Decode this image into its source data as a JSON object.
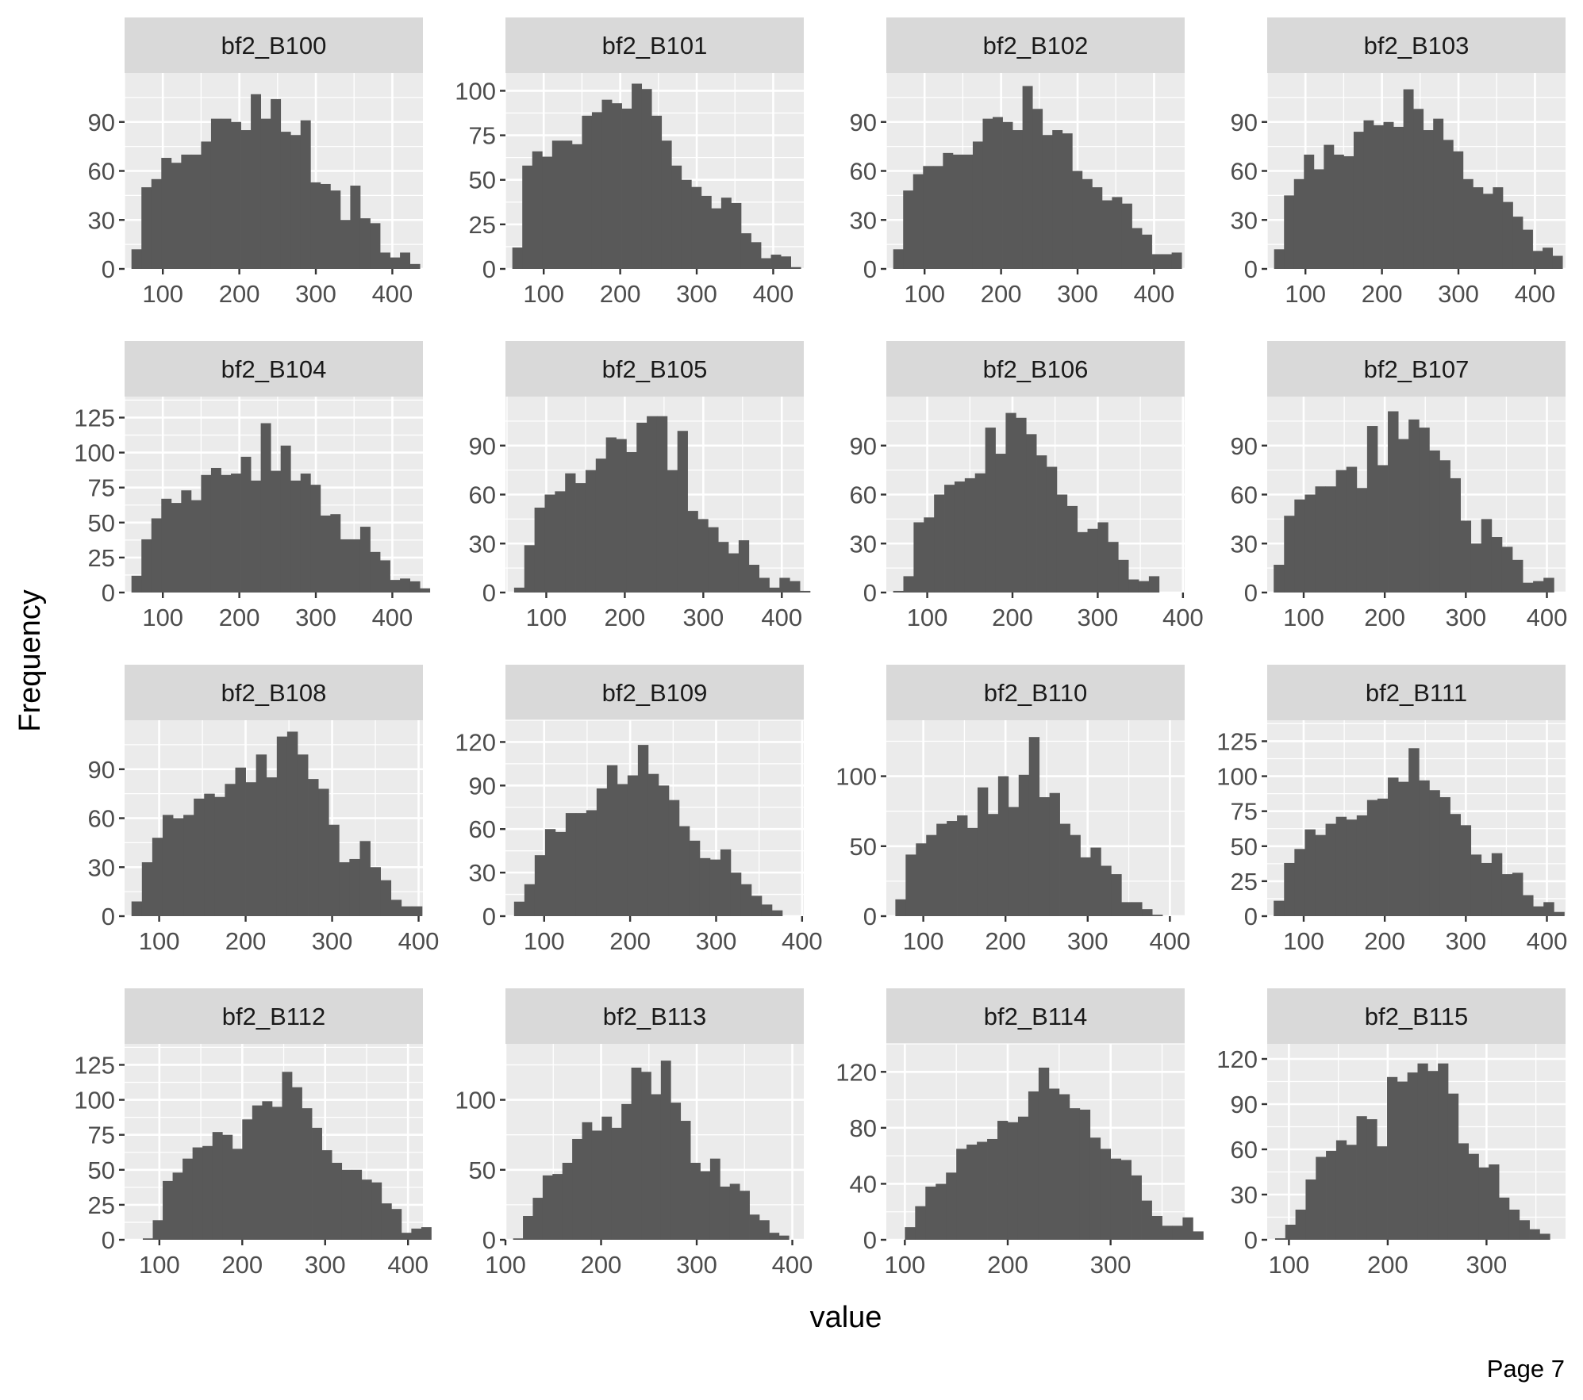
{
  "page_label": "Page 7",
  "xlabel": "value",
  "ylabel": "Frequency",
  "colors": {
    "bar": "#595959",
    "panel": "#ebebeb",
    "strip": "#d9d9d9",
    "grid": "#ffffff",
    "tick": "#333333",
    "tick_text": "#4d4d4d"
  },
  "chart_data": [
    {
      "type": "bar",
      "title": "bf2_B100",
      "xlim": [
        50,
        440
      ],
      "ylim": [
        0,
        120
      ],
      "xticks": [
        100,
        200,
        300,
        400
      ],
      "yticks": [
        0,
        30,
        60,
        90
      ],
      "bin_start": 59,
      "bin_width": 13,
      "values": [
        12,
        50,
        55,
        68,
        65,
        70,
        70,
        78,
        92,
        92,
        90,
        85,
        107,
        92,
        104,
        84,
        82,
        91,
        53,
        52,
        48,
        30,
        51,
        31,
        28,
        10,
        7,
        10,
        3
      ]
    },
    {
      "type": "bar",
      "title": "bf2_B101",
      "xlim": [
        50,
        440
      ],
      "ylim": [
        0,
        110
      ],
      "xticks": [
        100,
        200,
        300,
        400
      ],
      "yticks": [
        0,
        25,
        50,
        75,
        100
      ],
      "bin_start": 59,
      "bin_width": 13,
      "values": [
        12,
        58,
        66,
        63,
        72,
        72,
        70,
        86,
        88,
        95,
        93,
        90,
        104,
        101,
        86,
        72,
        58,
        50,
        46,
        41,
        34,
        40,
        37,
        20,
        15,
        6,
        8,
        7,
        1
      ]
    },
    {
      "type": "bar",
      "title": "bf2_B102",
      "xlim": [
        50,
        440
      ],
      "ylim": [
        0,
        120
      ],
      "xticks": [
        100,
        200,
        300,
        400
      ],
      "yticks": [
        0,
        30,
        60,
        90
      ],
      "bin_start": 59,
      "bin_width": 13,
      "values": [
        12,
        48,
        58,
        63,
        63,
        71,
        70,
        70,
        78,
        92,
        93,
        90,
        85,
        112,
        98,
        82,
        85,
        83,
        60,
        55,
        50,
        42,
        44,
        40,
        25,
        21,
        9,
        9,
        10
      ]
    },
    {
      "type": "bar",
      "title": "bf2_B103",
      "xlim": [
        50,
        440
      ],
      "ylim": [
        0,
        120
      ],
      "xticks": [
        100,
        200,
        300,
        400
      ],
      "yticks": [
        0,
        30,
        60,
        90
      ],
      "bin_start": 59,
      "bin_width": 13,
      "values": [
        12,
        45,
        55,
        70,
        61,
        76,
        70,
        69,
        84,
        91,
        88,
        90,
        87,
        110,
        98,
        85,
        92,
        79,
        72,
        55,
        50,
        46,
        50,
        41,
        32,
        24,
        11,
        13,
        8
      ]
    },
    {
      "type": "bar",
      "title": "bf2_B104",
      "xlim": [
        50,
        440
      ],
      "ylim": [
        0,
        140
      ],
      "xticks": [
        100,
        200,
        300,
        400
      ],
      "yticks": [
        0,
        25,
        50,
        75,
        100,
        125
      ],
      "bin_start": 59,
      "bin_width": 13,
      "values": [
        12,
        38,
        53,
        67,
        64,
        73,
        66,
        84,
        89,
        84,
        85,
        97,
        80,
        121,
        87,
        105,
        80,
        85,
        77,
        55,
        56,
        38,
        38,
        47,
        29,
        23,
        9,
        10,
        8,
        3
      ]
    },
    {
      "type": "bar",
      "title": "bf2_B105",
      "xlim": [
        48,
        428
      ],
      "ylim": [
        0,
        120
      ],
      "xticks": [
        100,
        200,
        300,
        400
      ],
      "yticks": [
        0,
        30,
        60,
        90
      ],
      "bin_start": 59,
      "bin_width": 13,
      "values": [
        3,
        29,
        52,
        60,
        62,
        73,
        67,
        75,
        82,
        95,
        94,
        86,
        104,
        108,
        108,
        75,
        99,
        50,
        45,
        40,
        31,
        24,
        32,
        17,
        9,
        3,
        9,
        7,
        1
      ]
    },
    {
      "type": "bar",
      "title": "bf2_B106",
      "xlim": [
        52,
        402
      ],
      "ylim": [
        0,
        120
      ],
      "xticks": [
        100,
        200,
        300,
        400
      ],
      "yticks": [
        0,
        30,
        60,
        90
      ],
      "bin_start": 60,
      "bin_width": 12,
      "values": [
        1,
        10,
        43,
        46,
        60,
        66,
        68,
        70,
        73,
        101,
        85,
        110,
        107,
        97,
        84,
        77,
        60,
        53,
        37,
        39,
        43,
        31,
        20,
        8,
        7,
        10
      ]
    },
    {
      "type": "bar",
      "title": "bf2_B107",
      "xlim": [
        55,
        423
      ],
      "ylim": [
        0,
        120
      ],
      "xticks": [
        100,
        200,
        300,
        400
      ],
      "yticks": [
        0,
        30,
        60,
        90
      ],
      "bin_start": 63,
      "bin_width": 12.8,
      "values": [
        17,
        47,
        57,
        60,
        65,
        65,
        75,
        77,
        64,
        102,
        78,
        111,
        94,
        106,
        101,
        87,
        81,
        70,
        44,
        30,
        45,
        34,
        28,
        20,
        6,
        7,
        9
      ]
    },
    {
      "type": "bar",
      "title": "bf2_B108",
      "xlim": [
        60,
        405
      ],
      "ylim": [
        0,
        120
      ],
      "xticks": [
        100,
        200,
        300,
        400
      ],
      "yticks": [
        0,
        30,
        60,
        90
      ],
      "bin_start": 68,
      "bin_width": 12,
      "values": [
        9,
        33,
        48,
        62,
        60,
        62,
        72,
        75,
        73,
        81,
        91,
        82,
        99,
        85,
        110,
        113,
        99,
        84,
        78,
        56,
        33,
        35,
        46,
        30,
        22,
        10,
        6,
        6
      ]
    },
    {
      "type": "bar",
      "title": "bf2_B109",
      "xlim": [
        55,
        402
      ],
      "ylim": [
        0,
        135
      ],
      "xticks": [
        100,
        200,
        300,
        400
      ],
      "yticks": [
        0,
        30,
        60,
        90,
        120
      ],
      "bin_start": 65,
      "bin_width": 12,
      "values": [
        10,
        22,
        42,
        60,
        58,
        71,
        71,
        73,
        88,
        104,
        91,
        97,
        118,
        98,
        90,
        80,
        62,
        52,
        40,
        39,
        46,
        30,
        22,
        14,
        8,
        4
      ]
    },
    {
      "type": "bar",
      "title": "bf2_B110",
      "xlim": [
        55,
        418
      ],
      "ylim": [
        0,
        140
      ],
      "xticks": [
        100,
        200,
        300,
        400
      ],
      "yticks": [
        0,
        50,
        100
      ],
      "bin_start": 66,
      "bin_width": 12.5,
      "values": [
        12,
        44,
        52,
        58,
        66,
        68,
        72,
        63,
        92,
        73,
        100,
        78,
        101,
        128,
        85,
        88,
        66,
        58,
        42,
        49,
        36,
        30,
        10,
        10,
        5,
        1
      ]
    },
    {
      "type": "bar",
      "title": "bf2_B111",
      "xlim": [
        55,
        423
      ],
      "ylim": [
        0,
        140
      ],
      "xticks": [
        100,
        200,
        300,
        400
      ],
      "yticks": [
        0,
        25,
        50,
        75,
        100,
        125
      ],
      "bin_start": 63,
      "bin_width": 12.8,
      "values": [
        11,
        38,
        48,
        62,
        58,
        66,
        71,
        69,
        72,
        83,
        84,
        99,
        96,
        120,
        97,
        90,
        85,
        73,
        65,
        44,
        38,
        45,
        30,
        31,
        15,
        7,
        10,
        3
      ]
    },
    {
      "type": "bar",
      "title": "bf2_B112",
      "xlim": [
        58,
        418
      ],
      "ylim": [
        0,
        140
      ],
      "xticks": [
        100,
        200,
        300,
        400
      ],
      "yticks": [
        0,
        25,
        50,
        75,
        100,
        125
      ],
      "bin_start": 68,
      "bin_width": 12,
      "values": [
        0,
        1,
        14,
        42,
        48,
        58,
        66,
        67,
        77,
        75,
        65,
        86,
        96,
        99,
        95,
        120,
        109,
        94,
        80,
        64,
        55,
        50,
        50,
        43,
        41,
        26,
        22,
        5,
        8,
        9
      ]
    },
    {
      "type": "bar",
      "title": "bf2_B113",
      "xlim": [
        100,
        412
      ],
      "ylim": [
        0,
        140
      ],
      "xticks": [
        100,
        200,
        300,
        400
      ],
      "yticks": [
        0,
        50,
        100
      ],
      "bin_start": 108,
      "bin_width": 10.3,
      "values": [
        1,
        17,
        30,
        46,
        47,
        55,
        72,
        84,
        78,
        88,
        80,
        97,
        123,
        120,
        104,
        128,
        98,
        85,
        55,
        49,
        58,
        38,
        40,
        35,
        18,
        14,
        5,
        3
      ]
    },
    {
      "type": "bar",
      "title": "bf2_B114",
      "xlim": [
        82,
        372
      ],
      "ylim": [
        0,
        140
      ],
      "xticks": [
        100,
        200,
        300
      ],
      "yticks": [
        0,
        40,
        80,
        120
      ],
      "bin_start": 90,
      "bin_width": 10,
      "values": [
        0,
        9,
        24,
        38,
        40,
        48,
        65,
        68,
        70,
        72,
        85,
        84,
        88,
        106,
        123,
        108,
        104,
        94,
        93,
        73,
        65,
        58,
        57,
        46,
        28,
        17,
        10,
        10,
        16,
        6
      ]
    },
    {
      "type": "bar",
      "title": "bf2_B115",
      "xlim": [
        78,
        380
      ],
      "ylim": [
        0,
        130
      ],
      "xticks": [
        100,
        200,
        300
      ],
      "yticks": [
        0,
        30,
        60,
        90,
        120
      ],
      "bin_start": 86,
      "bin_width": 10.3,
      "values": [
        1,
        10,
        20,
        40,
        55,
        59,
        66,
        63,
        82,
        80,
        62,
        108,
        105,
        111,
        117,
        112,
        117,
        97,
        64,
        57,
        48,
        50,
        28,
        20,
        13,
        7,
        4
      ]
    }
  ]
}
